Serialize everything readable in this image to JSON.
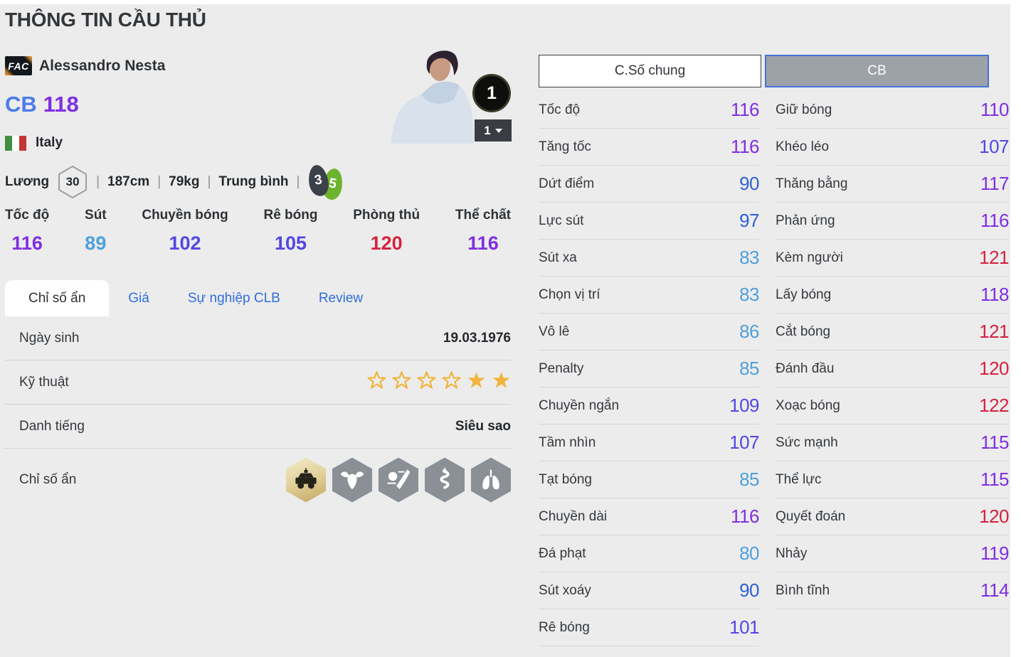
{
  "page": {
    "title": "THÔNG TIN CẦU THỦ"
  },
  "player": {
    "badge": "FAC",
    "name": "Alessandro Nesta",
    "position": "CB",
    "overall": "118",
    "nation": "Italy",
    "salary_label": "Lương",
    "salary": "30",
    "separator": "|",
    "height": "187cm",
    "weight": "79kg",
    "foot_label": "Trung bình",
    "weak_foot": "3",
    "strong_foot": "5",
    "grade_badge": "1",
    "grade_select": "1"
  },
  "summary_stats": [
    {
      "label": "Tốc độ",
      "value": 116
    },
    {
      "label": "Sút",
      "value": 89
    },
    {
      "label": "Chuyền bóng",
      "value": 102
    },
    {
      "label": "Rê bóng",
      "value": 105
    },
    {
      "label": "Phòng thủ",
      "value": 120
    },
    {
      "label": "Thể chất",
      "value": 116
    }
  ],
  "tabs": [
    {
      "key": "hidden-stats",
      "label": "Chỉ số ẩn",
      "active": true
    },
    {
      "key": "price",
      "label": "Giá",
      "active": false
    },
    {
      "key": "club-career",
      "label": "Sự nghiệp CLB",
      "active": false
    },
    {
      "key": "review",
      "label": "Review",
      "active": false
    }
  ],
  "info": {
    "birth_label": "Ngày sinh",
    "birth_value": "19.03.1976",
    "skill_label": "Kỹ thuật",
    "skill_stars_outline": 4,
    "skill_stars_filled": 2,
    "fame_label": "Danh tiếng",
    "fame_value": "Siêu sao",
    "hidden_label": "Chỉ số ẩn",
    "hidden_icons": [
      {
        "name": "police-car",
        "gold": true
      },
      {
        "name": "buffalo",
        "gold": false
      },
      {
        "name": "kick-ball",
        "gold": false
      },
      {
        "name": "snake",
        "gold": false
      },
      {
        "name": "lungs",
        "gold": false
      }
    ]
  },
  "detail_tabs": [
    {
      "key": "general",
      "label": "C.Số chung",
      "active": false
    },
    {
      "key": "cb",
      "label": "CB",
      "active": true
    }
  ],
  "detail_stats_left": [
    {
      "label": "Tốc độ",
      "value": 116
    },
    {
      "label": "Tăng tốc",
      "value": 116
    },
    {
      "label": "Dứt điểm",
      "value": 90
    },
    {
      "label": "Lực sút",
      "value": 97
    },
    {
      "label": "Sút xa",
      "value": 83
    },
    {
      "label": "Chọn vị trí",
      "value": 83
    },
    {
      "label": "Vô lê",
      "value": 86
    },
    {
      "label": "Penalty",
      "value": 85
    },
    {
      "label": "Chuyền ngắn",
      "value": 109
    },
    {
      "label": "Tầm nhìn",
      "value": 107
    },
    {
      "label": "Tạt bóng",
      "value": 85
    },
    {
      "label": "Chuyền dài",
      "value": 116
    },
    {
      "label": "Đá phạt",
      "value": 80
    },
    {
      "label": "Sút xoáy",
      "value": 90
    },
    {
      "label": "Rê bóng",
      "value": 101
    }
  ],
  "detail_stats_right": [
    {
      "label": "Giữ bóng",
      "value": 110
    },
    {
      "label": "Khéo léo",
      "value": 107
    },
    {
      "label": "Thăng bằng",
      "value": 117
    },
    {
      "label": "Phản ứng",
      "value": 116
    },
    {
      "label": "Kèm người",
      "value": 121
    },
    {
      "label": "Lấy bóng",
      "value": 118
    },
    {
      "label": "Cắt bóng",
      "value": 121
    },
    {
      "label": "Đánh đầu",
      "value": 120
    },
    {
      "label": "Xoạc bóng",
      "value": 122
    },
    {
      "label": "Sức mạnh",
      "value": 115
    },
    {
      "label": "Thể lực",
      "value": 115
    },
    {
      "label": "Quyết đoán",
      "value": 120
    },
    {
      "label": "Nhảy",
      "value": 119
    },
    {
      "label": "Bình tĩnh",
      "value": 114
    }
  ],
  "colors": {
    "tier80": "#4FA0DB",
    "tier90": "#2E5FD8",
    "tier100": "#5346E3",
    "tier110": "#7F2EE2",
    "tier120": "#D6213F",
    "link_blue": "#2E6EE0",
    "position_blue": "#4C7CE8",
    "star_gold": "#F2B43C",
    "foot_green": "#6CB32E",
    "foot_dark": "#3A4149"
  }
}
